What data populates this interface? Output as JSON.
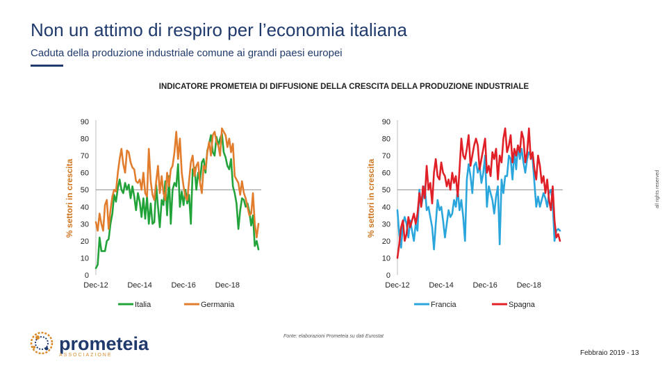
{
  "header": {
    "title": "Non un attimo di respiro per l’economia italiana",
    "subtitle": "Caduta della produzione industriale comune ai grandi paesi europei"
  },
  "chart_heading": "INDICATORE PROMETEIA DI DIFFUSIONE DELLA CRESCITA DELLA PRODUZIONE INDUSTRIALE",
  "rights_text": "all rights reserved",
  "source": "Fonte: elaborazioni Prometeia su dati Eurostat",
  "logo": {
    "name": "prometeia",
    "tagline": "ASSOCIAZIONE",
    "icon": "globe-dots-icon"
  },
  "footer": {
    "page_label": "Febbraio 2019 - 13"
  },
  "colors": {
    "italia": "#22a33a",
    "germania": "#e27d2e",
    "francia": "#2aa6dd",
    "spagna": "#e01f26",
    "title": "#1f3a6b"
  },
  "chart_data": [
    {
      "type": "line",
      "title": "",
      "xlabel": "",
      "ylabel": "% settori in crescita",
      "ylim": [
        0,
        90
      ],
      "yticks": [
        0,
        10,
        20,
        30,
        40,
        50,
        60,
        70,
        80,
        90
      ],
      "xticks": [
        "Dec-12",
        "Dec-14",
        "Dec-16",
        "Dec-18"
      ],
      "reference_line": 50,
      "x_start": "Dec-12",
      "frequency": "monthly",
      "series": [
        {
          "name": "Italia",
          "color": "#22a33a",
          "values": [
            4,
            6,
            22,
            14,
            14,
            14,
            20,
            21,
            30,
            36,
            47,
            43,
            51,
            56,
            50,
            48,
            54,
            50,
            53,
            45,
            52,
            46,
            38,
            48,
            43,
            34,
            45,
            33,
            46,
            30,
            42,
            30,
            31,
            53,
            40,
            28,
            44,
            41,
            55,
            35,
            58,
            30,
            50,
            54,
            52,
            65,
            40,
            49,
            41,
            50,
            42,
            47,
            30,
            62,
            63,
            50,
            60,
            55,
            66,
            68,
            60,
            73,
            77,
            82,
            72,
            70,
            81,
            76,
            80,
            83,
            72,
            69,
            64,
            62,
            68,
            52,
            48,
            42,
            27,
            38,
            45,
            44,
            40,
            42,
            37,
            29,
            35,
            17,
            20,
            15
          ]
        },
        {
          "name": "Germania",
          "color": "#e27d2e",
          "values": [
            31,
            26,
            36,
            30,
            26,
            41,
            44,
            27,
            38,
            46,
            50,
            49,
            60,
            68,
            74,
            65,
            60,
            73,
            72,
            66,
            63,
            62,
            55,
            54,
            56,
            50,
            60,
            48,
            46,
            74,
            55,
            47,
            44,
            55,
            64,
            48,
            58,
            48,
            44,
            60,
            52,
            62,
            64,
            72,
            84,
            68,
            80,
            60,
            52,
            46,
            44,
            55,
            66,
            70,
            58,
            64,
            66,
            54,
            48,
            64,
            62,
            72,
            78,
            70,
            82,
            84,
            78,
            76,
            70,
            86,
            84,
            82,
            75,
            80,
            72,
            77,
            58,
            56,
            54,
            47,
            55,
            48,
            45,
            40,
            35,
            36,
            48,
            30,
            22,
            30
          ]
        }
      ]
    },
    {
      "type": "line",
      "title": "",
      "xlabel": "",
      "ylabel": "% settori in crescita",
      "ylim": [
        0,
        90
      ],
      "yticks": [
        0,
        10,
        20,
        30,
        40,
        50,
        60,
        70,
        80,
        90
      ],
      "xticks": [
        "Dec-12",
        "Dec-14",
        "Dec-16",
        "Dec-18"
      ],
      "reference_line": 50,
      "x_start": "Dec-12",
      "frequency": "monthly",
      "series": [
        {
          "name": "Francia",
          "color": "#2aa6dd",
          "values": [
            38,
            24,
            16,
            30,
            34,
            30,
            22,
            32,
            26,
            20,
            30,
            26,
            50,
            40,
            46,
            52,
            38,
            40,
            34,
            28,
            15,
            30,
            44,
            38,
            40,
            32,
            22,
            30,
            38,
            34,
            36,
            44,
            40,
            50,
            38,
            44,
            34,
            20,
            56,
            65,
            58,
            48,
            64,
            66,
            60,
            64,
            54,
            60,
            70,
            40,
            52,
            48,
            44,
            36,
            46,
            52,
            18,
            56,
            48,
            58,
            58,
            70,
            68,
            56,
            72,
            62,
            76,
            68,
            74,
            66,
            60,
            68,
            72,
            70,
            68,
            54,
            40,
            46,
            40,
            44,
            48,
            45,
            40,
            48,
            50,
            42,
            20,
            26,
            27,
            26
          ]
        },
        {
          "name": "Spagna",
          "color": "#e01f26",
          "values": [
            10,
            18,
            28,
            32,
            20,
            24,
            34,
            28,
            32,
            36,
            30,
            36,
            48,
            40,
            52,
            45,
            64,
            50,
            54,
            42,
            60,
            68,
            58,
            56,
            66,
            60,
            58,
            52,
            56,
            50,
            60,
            54,
            58,
            46,
            62,
            80,
            70,
            68,
            74,
            82,
            64,
            70,
            76,
            80,
            76,
            62,
            68,
            74,
            80,
            60,
            64,
            58,
            72,
            68,
            74,
            56,
            70,
            66,
            80,
            86,
            72,
            76,
            82,
            66,
            74,
            70,
            76,
            72,
            84,
            80,
            66,
            72,
            86,
            68,
            72,
            62,
            56,
            70,
            64,
            54,
            58,
            48,
            56,
            44,
            38,
            52,
            32,
            22,
            24,
            20
          ]
        }
      ]
    }
  ]
}
